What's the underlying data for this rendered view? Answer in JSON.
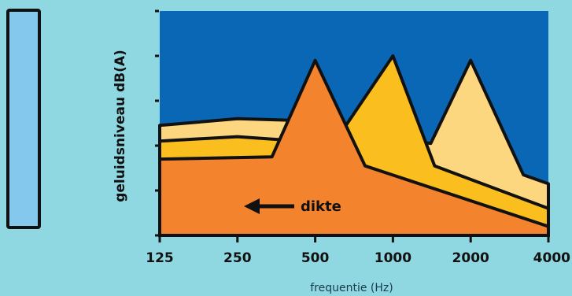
{
  "chart_data": {
    "type": "area",
    "title": "",
    "xlabel": "frequentie (Hz)",
    "ylabel": "geluidsniveau dB(A)",
    "x_scale": "log2",
    "categories": [
      "125",
      "250",
      "500",
      "1000",
      "2000",
      "4000"
    ],
    "xlim": [
      125,
      4000
    ],
    "ylim": [
      0,
      100
    ],
    "y_ticks": [
      0,
      20,
      40,
      60,
      80,
      100
    ],
    "grid": false,
    "legend": "none",
    "annotation": "dikte",
    "series": [
      {
        "color": "#fdd77f",
        "points": [
          [
            125,
            49
          ],
          [
            250,
            52
          ],
          [
            500,
            51
          ],
          [
            700,
            46
          ],
          [
            1400,
            41
          ],
          [
            2000,
            78
          ],
          [
            3200,
            27
          ],
          [
            4000,
            23
          ]
        ]
      },
      {
        "color": "#fbbe1f",
        "points": [
          [
            125,
            42
          ],
          [
            250,
            44
          ],
          [
            590,
            41
          ],
          [
            1000,
            80
          ],
          [
            1450,
            31
          ],
          [
            4000,
            12
          ]
        ]
      },
      {
        "color": "#f4832e",
        "points": [
          [
            125,
            34
          ],
          [
            340,
            35
          ],
          [
            500,
            78
          ],
          [
            780,
            31
          ],
          [
            4000,
            4
          ]
        ]
      }
    ]
  },
  "colors": {
    "background": "#8fd8e1",
    "plot_background": "#0a67b5",
    "outline": "#111111",
    "panel": "#84c8ee"
  }
}
